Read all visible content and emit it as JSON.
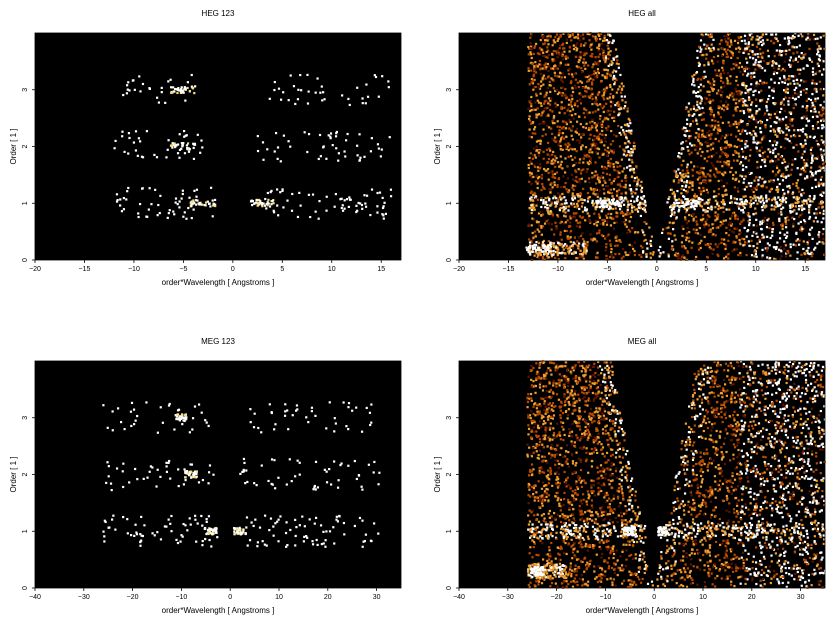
{
  "chart_data": [
    {
      "type": "heatmap",
      "title": "HEG 123",
      "xlabel": "order*Wavelength [ Angstroms ]",
      "ylabel": "Order [ 1 ]",
      "xlim": [
        -20,
        17
      ],
      "ylim": [
        0,
        4
      ],
      "xticks": [
        -20,
        -15,
        -10,
        -5,
        0,
        5,
        10,
        15
      ],
      "yticks": [
        0,
        1,
        2,
        3
      ],
      "grid": false,
      "background": "#000000",
      "colormap": [
        "#000000",
        "#5a1400",
        "#b84a00",
        "#f0a030",
        "#ffffff"
      ],
      "bands": [
        {
          "order": 1,
          "x_ranges": [
            [
              -12,
              -2
            ],
            [
              2.5,
              16
            ]
          ],
          "peaks": [
            -3,
            3
          ],
          "intensity": 0.35
        },
        {
          "order": 2,
          "x_ranges": [
            [
              -12,
              -2.5
            ],
            [
              2.5,
              16
            ]
          ],
          "peaks": [
            -5
          ],
          "intensity": 0.25
        },
        {
          "order": 3,
          "x_ranges": [
            [
              -12,
              -3
            ],
            [
              3,
              16
            ]
          ],
          "peaks": [
            -5
          ],
          "intensity": 0.2
        }
      ]
    },
    {
      "type": "heatmap",
      "title": "HEG all",
      "xlabel": "order*Wavelength [ Angstroms ]",
      "ylabel": "Order [ 1 ]",
      "xlim": [
        -20,
        17
      ],
      "ylim": [
        0,
        4
      ],
      "xticks": [
        -20,
        -15,
        -10,
        -5,
        0,
        5,
        10,
        15
      ],
      "yticks": [
        0,
        1,
        2,
        3
      ],
      "grid": false,
      "background": "#000000",
      "colormap": [
        "#000000",
        "#5a1400",
        "#b84a00",
        "#f0a030",
        "#ffffff"
      ],
      "wedges": {
        "left_edge": -13,
        "right_edge": 17,
        "order_slope": 1.1
      },
      "bands": [
        {
          "order": 1,
          "x_ranges": [
            [
              -13,
              -1
            ],
            [
              1,
              17
            ]
          ],
          "peaks": [
            -5,
            3
          ],
          "intensity": 0.8
        },
        {
          "order": 0.2,
          "x_ranges": [
            [
              -13,
              -7
            ]
          ],
          "peaks": [
            -12
          ],
          "intensity": 0.9
        }
      ]
    },
    {
      "type": "heatmap",
      "title": "MEG 123",
      "xlabel": "order*Wavelength [ Angstroms ]",
      "ylabel": "Order [ 1 ]",
      "xlim": [
        -40,
        35
      ],
      "ylim": [
        0,
        4
      ],
      "xticks": [
        -40,
        -30,
        -20,
        -10,
        0,
        10,
        20,
        30
      ],
      "yticks": [
        0,
        1,
        2,
        3
      ],
      "grid": false,
      "background": "#000000",
      "colormap": [
        "#000000",
        "#5a1400",
        "#b84a00",
        "#f0a030",
        "#ffffff"
      ],
      "bands": [
        {
          "order": 1,
          "x_ranges": [
            [
              -26,
              -2
            ],
            [
              2,
              31
            ]
          ],
          "peaks": [
            -4,
            2
          ],
          "intensity": 0.35
        },
        {
          "order": 2,
          "x_ranges": [
            [
              -26,
              -3
            ],
            [
              2,
              31
            ]
          ],
          "peaks": [
            -8
          ],
          "intensity": 0.25
        },
        {
          "order": 3,
          "x_ranges": [
            [
              -26,
              -4
            ],
            [
              2,
              31
            ]
          ],
          "peaks": [
            -10
          ],
          "intensity": 0.2
        }
      ]
    },
    {
      "type": "heatmap",
      "title": "MEG all",
      "xlabel": "order*Wavelength [ Angstroms ]",
      "ylabel": "Order [ 1 ]",
      "xlim": [
        -40,
        35
      ],
      "ylim": [
        0,
        4
      ],
      "xticks": [
        -40,
        -30,
        -20,
        -10,
        0,
        10,
        20,
        30
      ],
      "yticks": [
        0,
        1,
        2,
        3
      ],
      "grid": false,
      "background": "#000000",
      "colormap": [
        "#000000",
        "#5a1400",
        "#b84a00",
        "#f0a030",
        "#ffffff"
      ],
      "wedges": {
        "left_edge": -26,
        "right_edge": 35,
        "order_slope": 2.2
      },
      "bands": [
        {
          "order": 1,
          "x_ranges": [
            [
              -26,
              -1
            ],
            [
              1,
              35
            ]
          ],
          "peaks": [
            -5,
            2
          ],
          "intensity": 0.8
        },
        {
          "order": 0.3,
          "x_ranges": [
            [
              -26,
              -18
            ]
          ],
          "peaks": [
            -24
          ],
          "intensity": 0.9
        }
      ]
    }
  ]
}
